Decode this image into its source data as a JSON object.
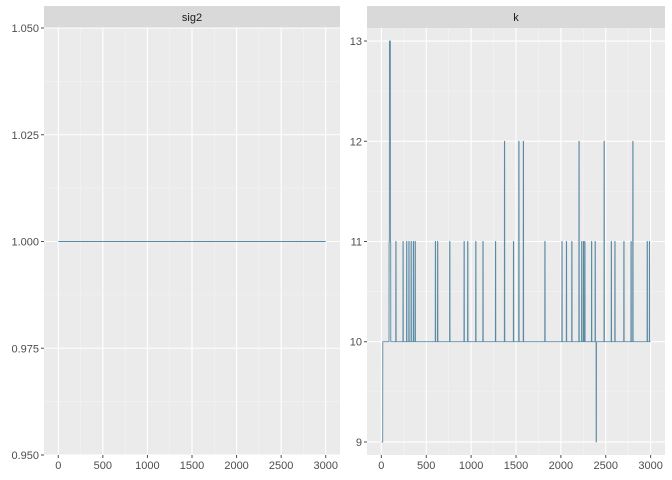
{
  "chart_data": [
    {
      "type": "line",
      "title": "sig2",
      "xlim": [
        -160,
        3160
      ],
      "ylim": [
        0.95,
        1.05
      ],
      "xticks": [
        0,
        500,
        1000,
        1500,
        2000,
        2500,
        3000
      ],
      "yticks": [
        0.95,
        0.975,
        1.0,
        1.025,
        1.05
      ],
      "ytick_labels": [
        "0.950",
        "0.975",
        "1.000",
        "1.025",
        "1.050"
      ],
      "grid": true,
      "color": "#5b8ba4",
      "series": [
        {
          "points": [
            [
              1,
              1.0
            ],
            [
              3000,
              1.0
            ]
          ]
        }
      ]
    },
    {
      "type": "line",
      "title": "k",
      "xlim": [
        -160,
        3160
      ],
      "ylim": [
        8.87,
        13.13
      ],
      "xticks": [
        0,
        500,
        1000,
        1500,
        2000,
        2500,
        3000
      ],
      "yticks": [
        9,
        10,
        11,
        12,
        13
      ],
      "ytick_labels": [
        "9",
        "10",
        "11",
        "12",
        "13"
      ],
      "grid": true,
      "color": "#5b8ba4",
      "series": [
        {
          "points": [
            [
              1,
              9
            ],
            [
              15,
              9
            ],
            [
              16,
              10
            ],
            [
              85,
              10
            ],
            [
              86,
              11
            ],
            [
              89,
              11
            ],
            [
              90,
              13
            ],
            [
              100,
              13
            ],
            [
              101,
              11
            ],
            [
              104,
              11
            ],
            [
              105,
              10
            ],
            [
              160,
              10
            ],
            [
              161,
              11
            ],
            [
              164,
              11
            ],
            [
              165,
              10
            ],
            [
              240,
              10
            ],
            [
              241,
              11
            ],
            [
              244,
              11
            ],
            [
              245,
              10
            ],
            [
              280,
              10
            ],
            [
              281,
              11
            ],
            [
              284,
              11
            ],
            [
              285,
              10
            ],
            [
              305,
              10
            ],
            [
              306,
              11
            ],
            [
              309,
              11
            ],
            [
              310,
              10
            ],
            [
              330,
              10
            ],
            [
              331,
              11
            ],
            [
              334,
              11
            ],
            [
              335,
              10
            ],
            [
              355,
              10
            ],
            [
              356,
              11
            ],
            [
              359,
              11
            ],
            [
              360,
              10
            ],
            [
              375,
              10
            ],
            [
              376,
              11
            ],
            [
              379,
              11
            ],
            [
              380,
              10
            ],
            [
              600,
              10
            ],
            [
              601,
              11
            ],
            [
              604,
              11
            ],
            [
              605,
              10
            ],
            [
              625,
              10
            ],
            [
              626,
              11
            ],
            [
              629,
              11
            ],
            [
              630,
              10
            ],
            [
              760,
              10
            ],
            [
              761,
              11
            ],
            [
              764,
              11
            ],
            [
              765,
              10
            ],
            [
              920,
              10
            ],
            [
              921,
              11
            ],
            [
              924,
              11
            ],
            [
              925,
              10
            ],
            [
              960,
              10
            ],
            [
              961,
              11
            ],
            [
              964,
              11
            ],
            [
              965,
              10
            ],
            [
              1050,
              10
            ],
            [
              1051,
              11
            ],
            [
              1054,
              11
            ],
            [
              1055,
              10
            ],
            [
              1130,
              10
            ],
            [
              1131,
              11
            ],
            [
              1134,
              11
            ],
            [
              1135,
              10
            ],
            [
              1270,
              10
            ],
            [
              1271,
              11
            ],
            [
              1274,
              11
            ],
            [
              1275,
              10
            ],
            [
              1370,
              10
            ],
            [
              1371,
              12
            ],
            [
              1374,
              12
            ],
            [
              1375,
              10
            ],
            [
              1470,
              10
            ],
            [
              1471,
              11
            ],
            [
              1474,
              11
            ],
            [
              1475,
              10
            ],
            [
              1530,
              10
            ],
            [
              1531,
              12
            ],
            [
              1534,
              12
            ],
            [
              1535,
              10
            ],
            [
              1580,
              10
            ],
            [
              1581,
              12
            ],
            [
              1584,
              12
            ],
            [
              1585,
              10
            ],
            [
              1820,
              10
            ],
            [
              1821,
              11
            ],
            [
              1824,
              11
            ],
            [
              1825,
              10
            ],
            [
              2010,
              10
            ],
            [
              2011,
              11
            ],
            [
              2014,
              11
            ],
            [
              2015,
              10
            ],
            [
              2060,
              10
            ],
            [
              2061,
              11
            ],
            [
              2064,
              11
            ],
            [
              2065,
              10
            ],
            [
              2120,
              10
            ],
            [
              2121,
              11
            ],
            [
              2124,
              11
            ],
            [
              2125,
              10
            ],
            [
              2200,
              10
            ],
            [
              2201,
              12
            ],
            [
              2204,
              12
            ],
            [
              2205,
              10
            ],
            [
              2230,
              10
            ],
            [
              2231,
              11
            ],
            [
              2234,
              11
            ],
            [
              2235,
              10
            ],
            [
              2250,
              10
            ],
            [
              2251,
              11
            ],
            [
              2254,
              11
            ],
            [
              2255,
              10
            ],
            [
              2265,
              10
            ],
            [
              2266,
              11
            ],
            [
              2269,
              11
            ],
            [
              2270,
              10
            ],
            [
              2340,
              10
            ],
            [
              2341,
              11
            ],
            [
              2344,
              11
            ],
            [
              2345,
              10
            ],
            [
              2380,
              10
            ],
            [
              2381,
              11
            ],
            [
              2384,
              11
            ],
            [
              2385,
              10
            ],
            [
              2392,
              10
            ],
            [
              2393,
              9
            ],
            [
              2396,
              9
            ],
            [
              2397,
              10
            ],
            [
              2480,
              10
            ],
            [
              2481,
              12
            ],
            [
              2484,
              12
            ],
            [
              2485,
              10
            ],
            [
              2560,
              10
            ],
            [
              2561,
              11
            ],
            [
              2564,
              11
            ],
            [
              2565,
              10
            ],
            [
              2600,
              10
            ],
            [
              2601,
              11
            ],
            [
              2604,
              11
            ],
            [
              2605,
              10
            ],
            [
              2700,
              10
            ],
            [
              2701,
              11
            ],
            [
              2704,
              11
            ],
            [
              2705,
              10
            ],
            [
              2780,
              10
            ],
            [
              2781,
              11
            ],
            [
              2784,
              11
            ],
            [
              2785,
              10
            ],
            [
              2800,
              10
            ],
            [
              2801,
              12
            ],
            [
              2804,
              12
            ],
            [
              2805,
              10
            ],
            [
              2960,
              10
            ],
            [
              2961,
              11
            ],
            [
              2964,
              11
            ],
            [
              2965,
              10
            ],
            [
              2985,
              10
            ],
            [
              2986,
              11
            ],
            [
              2989,
              11
            ],
            [
              2990,
              10
            ],
            [
              3000,
              10
            ]
          ]
        }
      ]
    }
  ]
}
